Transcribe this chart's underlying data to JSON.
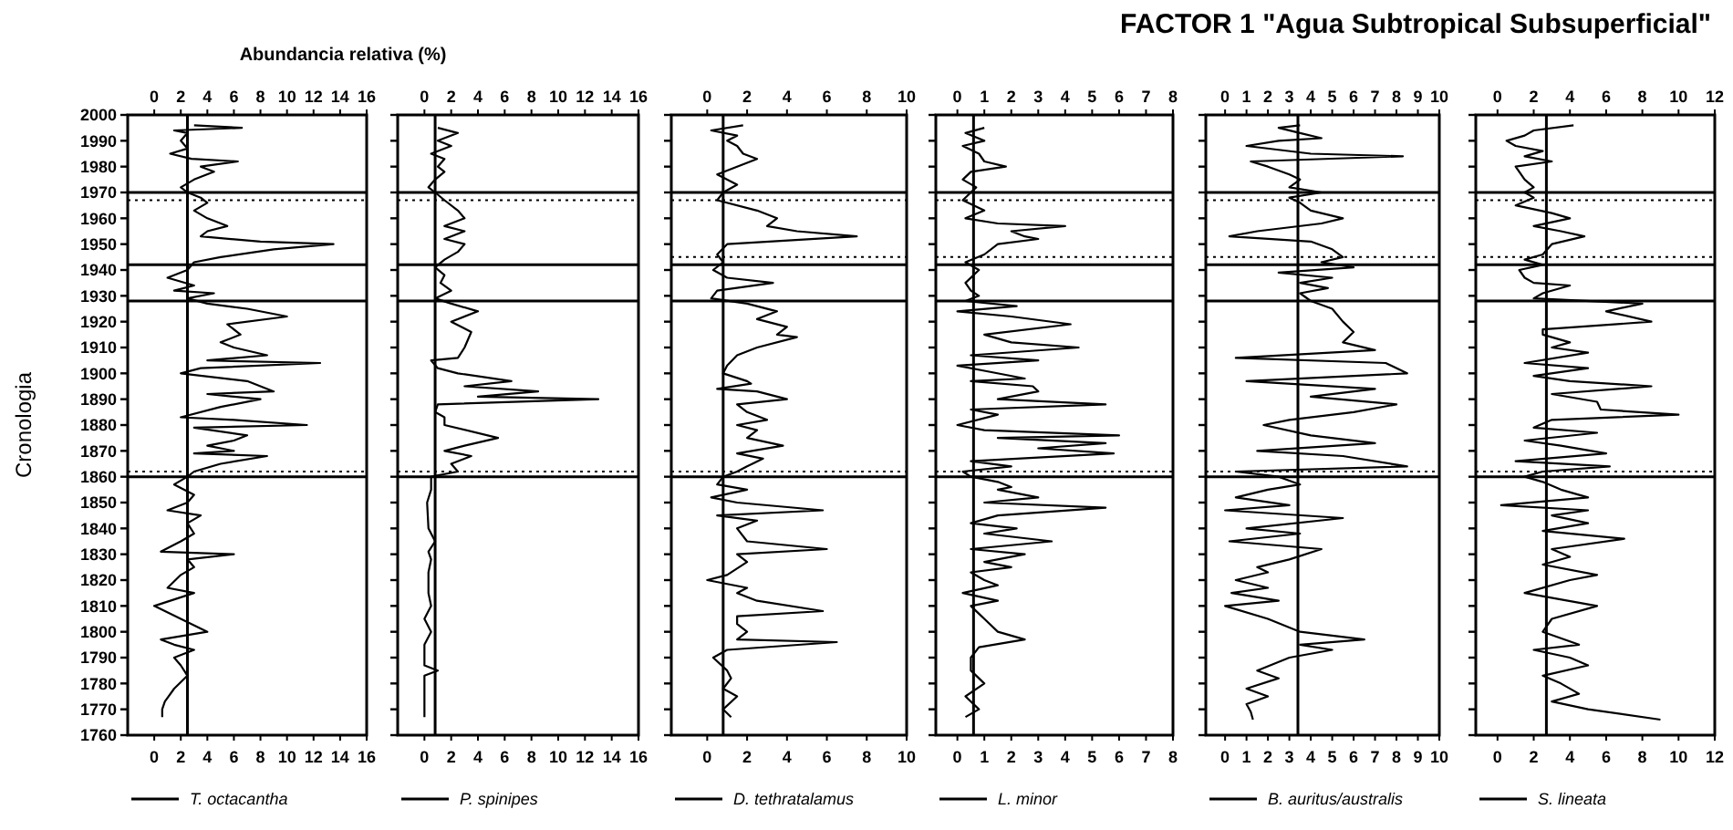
{
  "chart_data": [
    {
      "type": "line",
      "orientation": "horizontal",
      "x2label": "Abundancia relativa (%)",
      "ylabel": "Cronologia",
      "xlim": [
        -2,
        16
      ],
      "xticks": [
        0,
        2,
        4,
        6,
        8,
        10,
        12,
        14,
        16
      ],
      "x2lim": [
        -2,
        16
      ],
      "x2ticks": [
        0,
        2,
        4,
        6,
        8,
        10,
        12,
        14,
        16
      ],
      "ylim": [
        1760,
        2000
      ],
      "yticks": [
        1760,
        1770,
        1780,
        1790,
        1800,
        1810,
        1820,
        1830,
        1840,
        1850,
        1860,
        1870,
        1880,
        1890,
        1900,
        1910,
        1920,
        1930,
        1940,
        1950,
        1960,
        1970,
        1980,
        1990,
        2000
      ],
      "grid": false,
      "legend": "bottom",
      "line_style": "solid",
      "marker": "none",
      "ref_lines": [
        {
          "axis": "x",
          "value": 2.5
        },
        {
          "axis": "y",
          "value": 1970
        },
        {
          "axis": "y",
          "value": 1942
        },
        {
          "axis": "y",
          "value": 1928
        },
        {
          "axis": "y",
          "value": 1860
        },
        {
          "axis": "y",
          "value": 1967,
          "line_style": "dotted"
        },
        {
          "axis": "y",
          "value": 1862,
          "line_style": "dotted"
        }
      ],
      "series": [
        {
          "name": "T. octacantha",
          "color": "#000000",
          "x": [
            1996,
            1995,
            1994,
            1993,
            1990,
            1987,
            1985,
            1983,
            1982,
            1980,
            1978,
            1975,
            1972,
            1970,
            1968,
            1966,
            1963,
            1960,
            1957,
            1955,
            1953,
            1951,
            1950,
            1948,
            1945,
            1943,
            1940,
            1937,
            1934,
            1932,
            1931,
            1929,
            1927,
            1925,
            1922,
            1919,
            1915,
            1912,
            1910,
            1907,
            1905,
            1904,
            1902,
            1900,
            1897,
            1893,
            1892,
            1890,
            1887,
            1883,
            1882,
            1880,
            1879,
            1876,
            1874,
            1872,
            1870,
            1869,
            1868,
            1865,
            1862,
            1860,
            1857,
            1853,
            1850,
            1847,
            1845,
            1842,
            1838,
            1835,
            1831,
            1830,
            1828,
            1825,
            1822,
            1817,
            1815,
            1810,
            1805,
            1800,
            1797,
            1795,
            1793,
            1790,
            1787,
            1783,
            1778,
            1773,
            1770,
            1767
          ],
          "values": [
            3,
            6.6,
            1.5,
            2.5,
            2,
            2.5,
            1.2,
            2.8,
            6.3,
            3.5,
            4.5,
            3,
            2,
            2.5,
            3.5,
            4,
            3,
            4,
            5.5,
            4,
            3.5,
            8,
            13.5,
            9,
            5,
            3,
            2.5,
            1,
            3,
            1.5,
            4.5,
            2.5,
            4,
            7,
            10,
            5.5,
            6.5,
            5,
            6,
            8.5,
            4,
            12.5,
            3.5,
            2,
            7,
            9,
            4,
            8,
            5,
            2,
            6,
            11.5,
            3,
            7,
            6,
            4,
            6,
            3,
            8.5,
            5,
            3,
            2.5,
            1.5,
            3,
            2.5,
            1,
            3.5,
            2.5,
            3,
            2,
            0.5,
            6,
            2.5,
            3,
            2,
            1,
            3,
            0,
            2,
            4,
            0.5,
            1.5,
            3,
            1.5,
            2,
            2.5,
            1.5,
            0.8,
            0.6,
            0.6
          ]
        }
      ]
    },
    {
      "type": "line",
      "orientation": "horizontal",
      "xlim": [
        -2,
        16
      ],
      "xticks": [
        0,
        2,
        4,
        6,
        8,
        10,
        12,
        14,
        16
      ],
      "x2lim": [
        -2,
        16
      ],
      "x2ticks": [
        0,
        2,
        4,
        6,
        8,
        10,
        12,
        14,
        16
      ],
      "ylim": [
        1760,
        2000
      ],
      "yticks": [
        1760,
        1770,
        1780,
        1790,
        1800,
        1810,
        1820,
        1830,
        1840,
        1850,
        1860,
        1870,
        1880,
        1890,
        1900,
        1910,
        1920,
        1930,
        1940,
        1950,
        1960,
        1970,
        1980,
        1990,
        2000
      ],
      "tick_labels": "x",
      "grid": false,
      "legend": "bottom",
      "line_style": "solid",
      "marker": "none",
      "ref_lines": [
        {
          "axis": "x",
          "value": 0.8
        },
        {
          "axis": "y",
          "value": 1970
        },
        {
          "axis": "y",
          "value": 1942
        },
        {
          "axis": "y",
          "value": 1928
        },
        {
          "axis": "y",
          "value": 1860
        },
        {
          "axis": "y",
          "value": 1967,
          "line_style": "dotted"
        },
        {
          "axis": "y",
          "value": 1862,
          "line_style": "dotted"
        }
      ],
      "series": [
        {
          "name": "P. spinipes",
          "color": "#000000",
          "x": [
            1995,
            1993,
            1990,
            1988,
            1985,
            1983,
            1980,
            1978,
            1975,
            1972,
            1970,
            1967,
            1963,
            1960,
            1957,
            1955,
            1952,
            1950,
            1947,
            1944,
            1941,
            1938,
            1935,
            1932,
            1929,
            1927,
            1924,
            1920,
            1916,
            1910,
            1906,
            1905,
            1902,
            1900,
            1897,
            1895,
            1893,
            1891,
            1890,
            1888,
            1885,
            1883,
            1880,
            1875,
            1872,
            1870,
            1868,
            1865,
            1862,
            1860,
            1855,
            1850,
            1840,
            1835,
            1831,
            1828,
            1823,
            1815,
            1810,
            1805,
            1800,
            1795,
            1787,
            1785,
            1783,
            1775,
            1767
          ],
          "values": [
            1,
            2.5,
            1,
            2,
            0.5,
            1.5,
            1,
            1.5,
            0.8,
            0.3,
            0.8,
            1.5,
            2.5,
            3,
            1.5,
            3,
            1.5,
            3,
            2.5,
            1.5,
            0.8,
            1.5,
            1.2,
            2,
            0.8,
            2,
            4,
            2,
            3.5,
            3,
            2.5,
            0.5,
            1,
            2.5,
            6.5,
            3,
            8.5,
            4,
            13,
            1,
            0.8,
            1.5,
            1.5,
            5.5,
            3,
            1.5,
            3.5,
            2,
            2.5,
            0.5,
            0.5,
            0.2,
            0.3,
            0.8,
            0.3,
            0.5,
            0.3,
            0.3,
            0.5,
            0,
            0.5,
            0,
            0,
            1,
            0,
            0,
            0
          ]
        }
      ]
    },
    {
      "type": "line",
      "orientation": "horizontal",
      "xlim": [
        -1.8,
        10
      ],
      "xticks": [
        0,
        2,
        4,
        6,
        8,
        10
      ],
      "x2lim": [
        -1.8,
        10
      ],
      "x2ticks": [
        0,
        2,
        4,
        6,
        8,
        10
      ],
      "ylim": [
        1760,
        2000
      ],
      "yticks": [
        1760,
        1770,
        1780,
        1790,
        1800,
        1810,
        1820,
        1830,
        1840,
        1850,
        1860,
        1870,
        1880,
        1890,
        1900,
        1910,
        1920,
        1930,
        1940,
        1950,
        1960,
        1970,
        1980,
        1990,
        2000
      ],
      "tick_labels": "x",
      "grid": false,
      "legend": "bottom",
      "line_style": "solid",
      "marker": "none",
      "ref_lines": [
        {
          "axis": "x",
          "value": 0.8
        },
        {
          "axis": "y",
          "value": 1970
        },
        {
          "axis": "y",
          "value": 1942
        },
        {
          "axis": "y",
          "value": 1928
        },
        {
          "axis": "y",
          "value": 1860
        },
        {
          "axis": "y",
          "value": 1967,
          "line_style": "dotted"
        },
        {
          "axis": "y",
          "value": 1945,
          "line_style": "dotted"
        },
        {
          "axis": "y",
          "value": 1862,
          "line_style": "dotted"
        }
      ],
      "series": [
        {
          "name": "D. tethratalamus",
          "color": "#000000",
          "x": [
            1996,
            1994,
            1992,
            1990,
            1988,
            1985,
            1983,
            1980,
            1977,
            1973,
            1970,
            1967,
            1963,
            1960,
            1957,
            1955,
            1953,
            1950,
            1946,
            1943,
            1940,
            1937,
            1935,
            1932,
            1929,
            1927,
            1924,
            1921,
            1918,
            1915,
            1914,
            1910,
            1907,
            1903,
            1900,
            1897,
            1896,
            1894,
            1893,
            1890,
            1888,
            1885,
            1882,
            1880,
            1878,
            1875,
            1872,
            1869,
            1867,
            1864,
            1862,
            1860,
            1857,
            1855,
            1852,
            1850,
            1847,
            1845,
            1843,
            1840,
            1835,
            1832,
            1830,
            1827,
            1822,
            1820,
            1817,
            1815,
            1812,
            1808,
            1806,
            1803,
            1800,
            1797,
            1796,
            1793,
            1790,
            1785,
            1782,
            1778,
            1775,
            1770,
            1767
          ],
          "values": [
            1.8,
            0.2,
            1.5,
            1,
            1.5,
            1.8,
            2.5,
            1.5,
            0.5,
            1.5,
            0.8,
            0.5,
            2.5,
            3.5,
            3,
            4.5,
            7.5,
            1,
            0.5,
            0.8,
            0.3,
            1,
            3.3,
            0.5,
            0.2,
            2,
            3.5,
            2.5,
            4,
            3.5,
            4.5,
            2.5,
            1.5,
            1,
            0.8,
            2,
            2.2,
            0.5,
            2.5,
            4,
            1.5,
            2,
            3,
            1.5,
            2.5,
            2,
            3.8,
            1.5,
            2.8,
            2,
            1.5,
            0.8,
            0.5,
            2,
            0.2,
            1.5,
            5.8,
            0.5,
            2.5,
            1.5,
            2,
            6,
            1.5,
            2,
            1,
            0,
            2,
            1.5,
            2.5,
            5.8,
            1.5,
            1.5,
            2,
            1.5,
            6.5,
            1,
            0.3,
            1,
            1.2,
            0.8,
            1.5,
            0.8,
            1.2
          ]
        }
      ]
    },
    {
      "type": "line",
      "orientation": "horizontal",
      "xlim": [
        -0.8,
        8
      ],
      "xticks": [
        0,
        1,
        2,
        3,
        4,
        5,
        6,
        7,
        8
      ],
      "x2lim": [
        -0.8,
        8
      ],
      "x2ticks": [
        0,
        1,
        2,
        3,
        4,
        5,
        6,
        7,
        8
      ],
      "ylim": [
        1760,
        2000
      ],
      "yticks": [
        1760,
        1770,
        1780,
        1790,
        1800,
        1810,
        1820,
        1830,
        1840,
        1850,
        1860,
        1870,
        1880,
        1890,
        1900,
        1910,
        1920,
        1930,
        1940,
        1950,
        1960,
        1970,
        1980,
        1990,
        2000
      ],
      "tick_labels": "x",
      "grid": false,
      "legend": "bottom",
      "line_style": "solid",
      "marker": "none",
      "ref_lines": [
        {
          "axis": "x",
          "value": 0.6
        },
        {
          "axis": "y",
          "value": 1970
        },
        {
          "axis": "y",
          "value": 1942
        },
        {
          "axis": "y",
          "value": 1928
        },
        {
          "axis": "y",
          "value": 1860
        },
        {
          "axis": "y",
          "value": 1967,
          "line_style": "dotted"
        },
        {
          "axis": "y",
          "value": 1945,
          "line_style": "dotted"
        },
        {
          "axis": "y",
          "value": 1862,
          "line_style": "dotted"
        }
      ],
      "series": [
        {
          "name": "L. minor",
          "color": "#000000",
          "x": [
            1995,
            1993,
            1990,
            1988,
            1985,
            1982,
            1980,
            1978,
            1975,
            1972,
            1970,
            1967,
            1963,
            1960,
            1958,
            1957,
            1955,
            1953,
            1952,
            1950,
            1946,
            1943,
            1940,
            1935,
            1932,
            1930,
            1928,
            1926,
            1924,
            1922,
            1919,
            1915,
            1912,
            1910,
            1907,
            1905,
            1903,
            1901,
            1898,
            1897,
            1895,
            1893,
            1890,
            1888,
            1886,
            1884,
            1880,
            1878,
            1876,
            1875,
            1873,
            1871,
            1869,
            1866,
            1864,
            1862,
            1860,
            1858,
            1856,
            1855,
            1852,
            1850,
            1848,
            1845,
            1842,
            1840,
            1838,
            1835,
            1832,
            1830,
            1827,
            1825,
            1823,
            1820,
            1818,
            1815,
            1812,
            1810,
            1807,
            1805,
            1800,
            1797,
            1794,
            1790,
            1785,
            1780,
            1775,
            1770,
            1767
          ],
          "values": [
            1,
            0.3,
            1,
            0.2,
            0.8,
            1,
            1.8,
            0.5,
            0.2,
            0.7,
            0.5,
            0.2,
            1,
            0.3,
            1.5,
            4,
            2,
            2.5,
            3,
            1.5,
            1,
            0.3,
            0.8,
            0.3,
            0.5,
            0.8,
            0.3,
            2.2,
            0,
            2,
            4.2,
            1,
            2,
            4.5,
            0.5,
            3,
            0,
            1,
            2.5,
            0.5,
            2.8,
            3,
            1.5,
            5.5,
            0.5,
            1.5,
            0,
            1,
            6,
            1.5,
            5.5,
            3,
            5.8,
            0.5,
            2,
            0.2,
            0.5,
            1.5,
            2,
            1.5,
            3,
            1,
            5.5,
            1.5,
            0.5,
            2.2,
            1,
            3.5,
            0.5,
            2.5,
            1,
            2,
            0.5,
            1,
            1.5,
            0.2,
            1.5,
            0.5,
            0.8,
            1,
            1.5,
            2.5,
            0.8,
            0.5,
            0.5,
            1,
            0.3,
            0.8,
            0.3
          ]
        }
      ]
    },
    {
      "type": "line",
      "orientation": "horizontal",
      "title": "FACTOR 1 \"Agua Subtropical Subsuperficial\"",
      "xlim": [
        -0.9,
        10
      ],
      "xticks": [
        0,
        1,
        2,
        3,
        4,
        5,
        6,
        7,
        8,
        9,
        10
      ],
      "x2lim": [
        -0.9,
        10
      ],
      "x2ticks": [
        0,
        1,
        2,
        3,
        4,
        5,
        6,
        7,
        8,
        9,
        10
      ],
      "ylim": [
        1760,
        2000
      ],
      "yticks": [
        1760,
        1770,
        1780,
        1790,
        1800,
        1810,
        1820,
        1830,
        1840,
        1850,
        1860,
        1870,
        1880,
        1890,
        1900,
        1910,
        1920,
        1930,
        1940,
        1950,
        1960,
        1970,
        1980,
        1990,
        2000
      ],
      "tick_labels": "x",
      "grid": false,
      "legend": "bottom",
      "line_style": "solid",
      "marker": "none",
      "ref_lines": [
        {
          "axis": "x",
          "value": 3.4
        },
        {
          "axis": "y",
          "value": 1970
        },
        {
          "axis": "y",
          "value": 1942
        },
        {
          "axis": "y",
          "value": 1928
        },
        {
          "axis": "y",
          "value": 1860
        },
        {
          "axis": "y",
          "value": 1967,
          "line_style": "dotted"
        },
        {
          "axis": "y",
          "value": 1945,
          "line_style": "dotted"
        },
        {
          "axis": "y",
          "value": 1862,
          "line_style": "dotted"
        }
      ],
      "series": [
        {
          "name": "B. auritus/australis",
          "color": "#000000",
          "x": [
            1996,
            1995,
            1993,
            1991,
            1990,
            1988,
            1985,
            1984,
            1982,
            1980,
            1977,
            1975,
            1972,
            1970,
            1968,
            1966,
            1963,
            1960,
            1958,
            1955,
            1953,
            1951,
            1948,
            1945,
            1943,
            1941,
            1939,
            1937,
            1935,
            1933,
            1931,
            1928,
            1925,
            1920,
            1916,
            1912,
            1909,
            1906,
            1904,
            1900,
            1897,
            1894,
            1891,
            1888,
            1885,
            1882,
            1880,
            1876,
            1873,
            1870,
            1868,
            1864,
            1862,
            1860,
            1857,
            1855,
            1852,
            1849,
            1847,
            1844,
            1840,
            1838,
            1835,
            1832,
            1828,
            1825,
            1823,
            1820,
            1817,
            1815,
            1812,
            1810,
            1805,
            1800,
            1797,
            1795,
            1793,
            1790,
            1785,
            1782,
            1778,
            1775,
            1772,
            1769,
            1766
          ],
          "values": [
            3.5,
            2.5,
            3.5,
            4.5,
            2.5,
            1,
            4,
            8.3,
            1.2,
            2,
            3,
            3.5,
            3,
            4.5,
            3,
            3.5,
            4,
            5.5,
            4.5,
            1.5,
            0.2,
            4,
            5,
            5.5,
            4.5,
            6,
            2.5,
            5,
            3.5,
            4.8,
            3.5,
            4,
            5,
            5.5,
            6,
            5.5,
            7,
            0.5,
            7.5,
            8.5,
            1,
            7,
            4,
            8,
            6,
            3,
            1.8,
            4,
            7,
            1.5,
            5.5,
            8.5,
            0.5,
            2.5,
            3.5,
            2,
            0.5,
            3,
            0,
            5.5,
            1,
            3.5,
            0.2,
            4.5,
            3,
            1.5,
            2,
            0.5,
            2,
            0.3,
            2.5,
            0,
            2,
            3.5,
            6.5,
            3.5,
            5,
            3,
            1.5,
            2.5,
            1,
            2,
            1,
            1.2,
            1.3
          ]
        }
      ]
    },
    {
      "type": "line",
      "orientation": "horizontal",
      "xlim": [
        -1.2,
        12
      ],
      "xticks": [
        0,
        2,
        4,
        6,
        8,
        10,
        12
      ],
      "x2lim": [
        -1.2,
        12
      ],
      "x2ticks": [
        0,
        2,
        4,
        6,
        8,
        10,
        12
      ],
      "ylim": [
        1760,
        2000
      ],
      "yticks": [
        1760,
        1770,
        1780,
        1790,
        1800,
        1810,
        1820,
        1830,
        1840,
        1850,
        1860,
        1870,
        1880,
        1890,
        1900,
        1910,
        1920,
        1930,
        1940,
        1950,
        1960,
        1970,
        1980,
        1990,
        2000
      ],
      "tick_labels": "x",
      "grid": false,
      "legend": "bottom",
      "line_style": "solid",
      "marker": "none",
      "ref_lines": [
        {
          "axis": "x",
          "value": 2.7
        },
        {
          "axis": "y",
          "value": 1970
        },
        {
          "axis": "y",
          "value": 1942
        },
        {
          "axis": "y",
          "value": 1928
        },
        {
          "axis": "y",
          "value": 1860
        },
        {
          "axis": "y",
          "value": 1967,
          "line_style": "dotted"
        },
        {
          "axis": "y",
          "value": 1945,
          "line_style": "dotted"
        },
        {
          "axis": "y",
          "value": 1862,
          "line_style": "dotted"
        }
      ],
      "series": [
        {
          "name": "S. lineata",
          "color": "#000000",
          "x": [
            1996,
            1994,
            1992,
            1990,
            1988,
            1986,
            1984,
            1982,
            1980,
            1975,
            1972,
            1970,
            1968,
            1965,
            1962,
            1960,
            1957,
            1955,
            1953,
            1950,
            1946,
            1944,
            1942,
            1940,
            1937,
            1935,
            1934,
            1931,
            1929,
            1927,
            1924,
            1920,
            1917,
            1915,
            1912,
            1910,
            1908,
            1904,
            1902,
            1899,
            1897,
            1895,
            1892,
            1889,
            1886,
            1884,
            1882,
            1879,
            1877,
            1874,
            1872,
            1869,
            1866,
            1864,
            1862,
            1860,
            1858,
            1855,
            1852,
            1849,
            1847,
            1845,
            1842,
            1839,
            1836,
            1832,
            1829,
            1826,
            1822,
            1820,
            1815,
            1810,
            1805,
            1800,
            1795,
            1793,
            1790,
            1787,
            1783,
            1780,
            1776,
            1773,
            1770,
            1766
          ],
          "values": [
            4.2,
            2,
            1.5,
            0.5,
            1,
            2.5,
            1.5,
            3,
            1,
            1.5,
            2,
            1.5,
            2,
            1,
            3,
            4,
            2,
            3.5,
            4.8,
            3,
            2.5,
            1.5,
            2.5,
            1.2,
            1.5,
            2,
            4,
            2.5,
            2,
            8,
            6,
            8.5,
            2.5,
            2.5,
            4,
            3,
            5,
            1.5,
            5,
            2,
            4,
            8.5,
            3,
            5.5,
            5.7,
            10,
            3,
            2,
            5.5,
            1.5,
            3.5,
            6,
            1,
            6.2,
            2.5,
            1.5,
            2.5,
            3.5,
            5,
            0.2,
            5,
            3,
            5,
            2.5,
            7,
            3,
            4,
            2.5,
            5.5,
            4,
            1.5,
            5.5,
            3,
            2.5,
            4.5,
            2,
            4,
            5,
            2.5,
            3.5,
            4.5,
            3,
            5,
            9
          ]
        }
      ]
    }
  ]
}
